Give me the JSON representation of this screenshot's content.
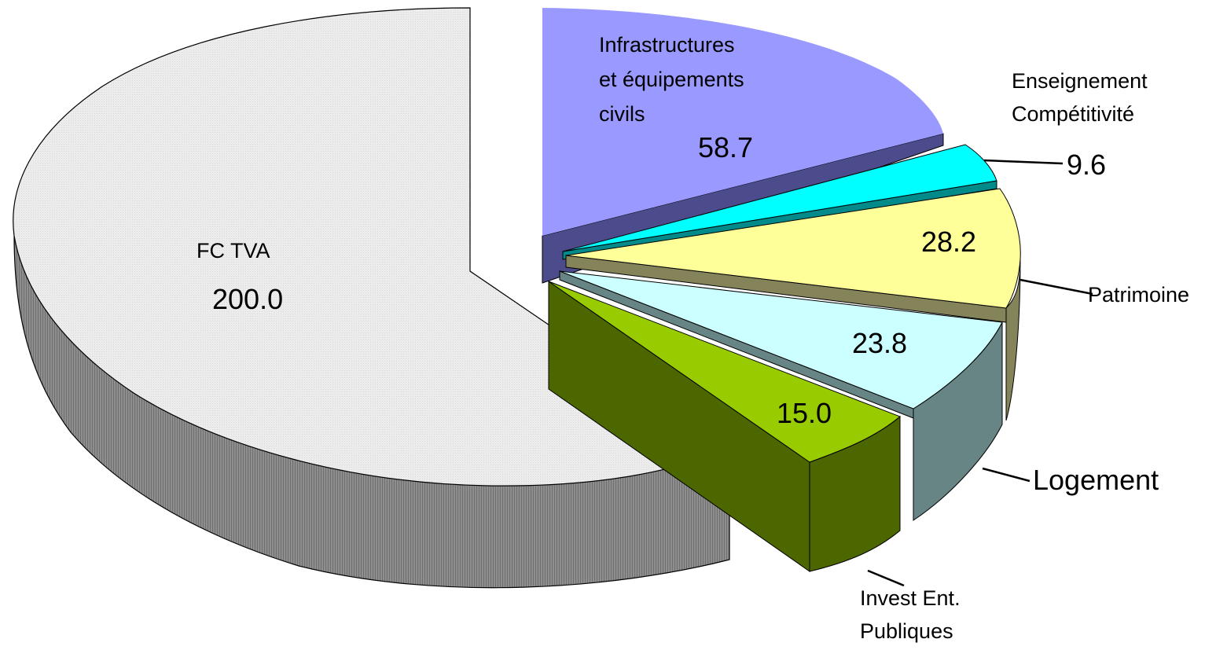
{
  "chart_data": {
    "type": "pie",
    "slices": [
      {
        "name": "FC TVA",
        "value_label": "200.0",
        "value": 200.0,
        "top_color": "#ececec",
        "side_color": "#8c8c8c"
      },
      {
        "name": "Infrastructures\net équipements\ncivils",
        "value_label": "58.7",
        "value": 58.7,
        "top_color": "#9999ff",
        "side_color": "#4c4c8c"
      },
      {
        "name": "Enseignement\nCompétitivité",
        "value_label": "9.6",
        "value": 9.6,
        "top_color": "#00ffff",
        "side_color": "#008a8a"
      },
      {
        "name": "Patrimoine",
        "value_label": "28.2",
        "value": 28.2,
        "top_color": "#ffff99",
        "side_color": "#85835a"
      },
      {
        "name": "Logement",
        "value_label": "23.8",
        "value": 23.8,
        "top_color": "#ccffff",
        "side_color": "#688585"
      },
      {
        "name": "Invest Ent.\nPubliques",
        "value_label": "15.0",
        "value": 15.0,
        "top_color": "#99cc00",
        "side_color": "#4c6600"
      }
    ],
    "legend": "none",
    "style": "3d-exploded"
  }
}
